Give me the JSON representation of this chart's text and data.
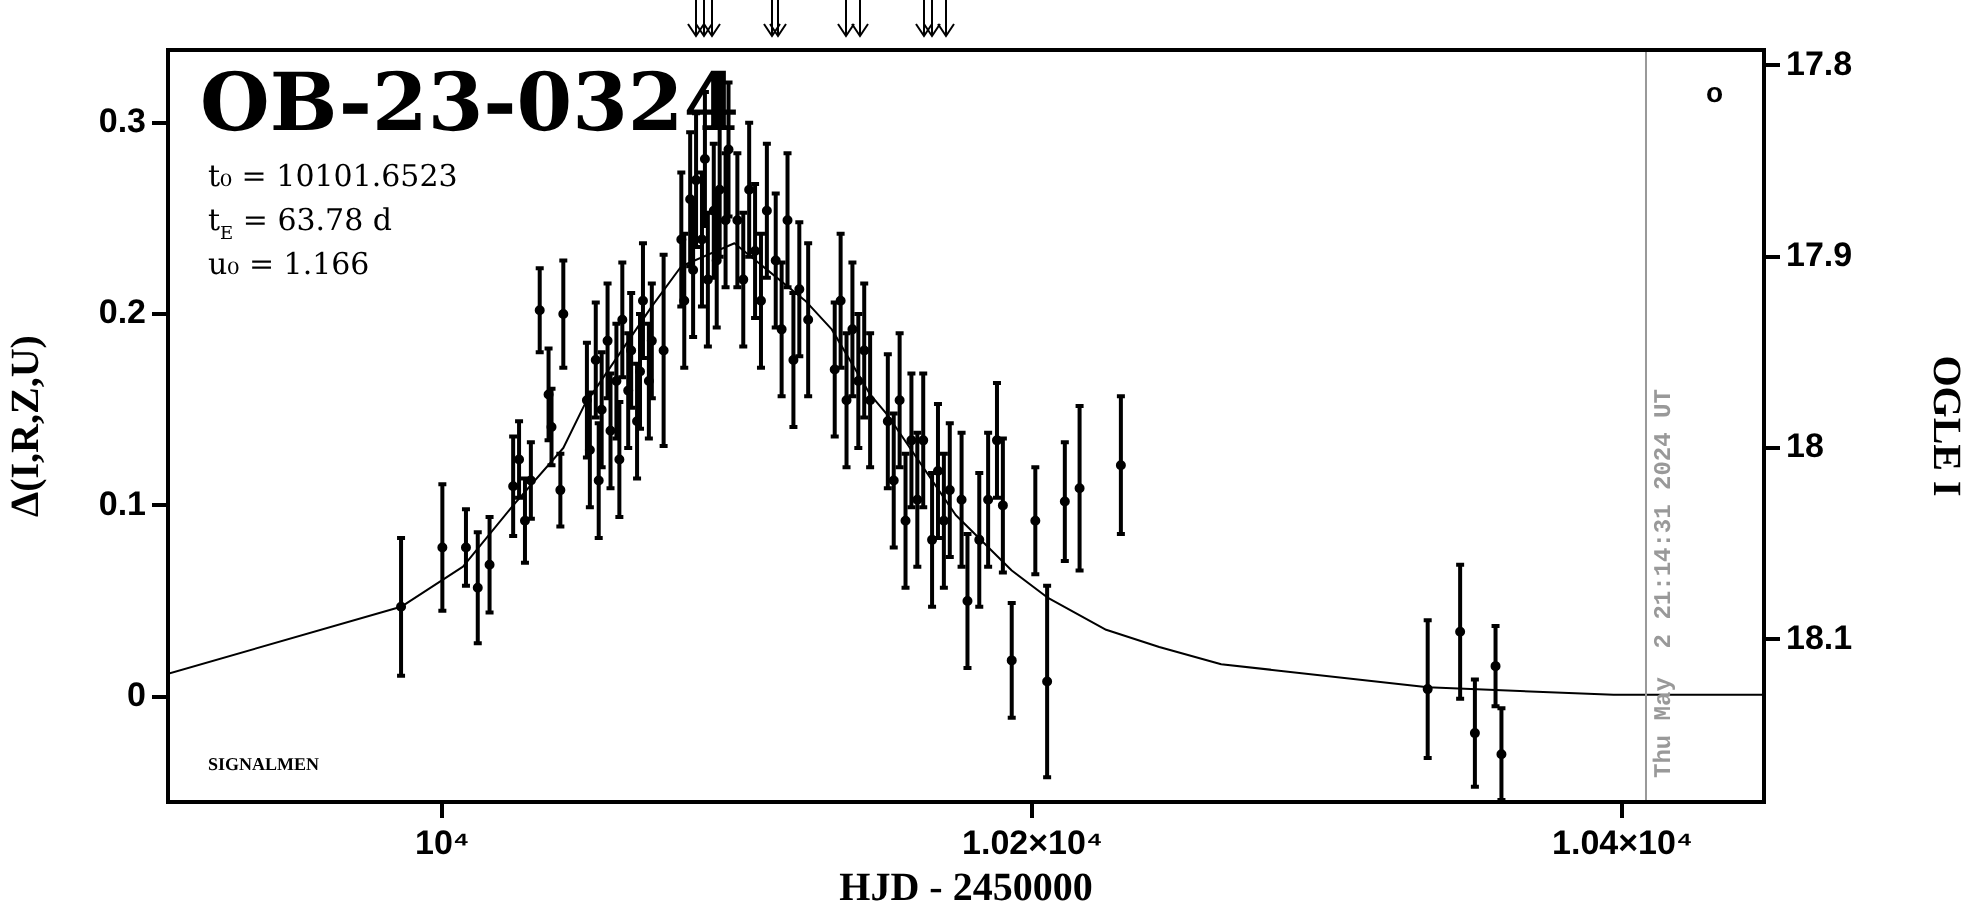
{
  "chart_data": {
    "type": "scatter",
    "xlabel": "HJD - 2450000",
    "ylabel": "Δ(I,R,Z,U)",
    "y2label": "OGLE I",
    "xlim": [
      9907,
      10448
    ],
    "xticks": [
      {
        "value": 10000,
        "label": "10⁴"
      },
      {
        "value": 10200,
        "label": "1.02×10⁴"
      },
      {
        "value": 10400,
        "label": "1.04×10⁴"
      }
    ],
    "ylim": [
      -0.055,
      0.338
    ],
    "yticks": [
      0,
      0.1,
      0.2,
      0.3
    ],
    "y2lim": [
      18.185,
      17.792
    ],
    "y2ticks": [
      17.8,
      17.9,
      18,
      18.1
    ],
    "annotations": [
      "OB-23-0324",
      "t₀ = 10101.6523",
      "t$_{E}$ = 63.78 d",
      "u₀ = 1.166",
      "SIGNALMEN",
      "o",
      "Thu May  2 21:14:31 2024 UT"
    ],
    "ref_lines": [
      {
        "axis": "x",
        "value": 10408,
        "color": "#999999"
      }
    ],
    "series": [
      {
        "type": "scatter",
        "color": "#000000",
        "marker": "circle",
        "x": [
          9986,
          10000,
          10008,
          10012,
          10016,
          10024,
          10026,
          10028,
          10030,
          10033,
          10036,
          10037,
          10040,
          10041,
          10049,
          10050,
          10052,
          10053,
          10054,
          10056,
          10057,
          10059,
          10060,
          10061,
          10063,
          10064,
          10066,
          10067,
          10068,
          10070,
          10071,
          10075,
          10081,
          10082,
          10084,
          10085,
          10086,
          10088,
          10089,
          10090,
          10092,
          10093,
          10094,
          10096,
          10097,
          10100,
          10102,
          10104,
          10106,
          10108,
          10110,
          10113,
          10115,
          10117,
          10119,
          10121,
          10124,
          10133,
          10135,
          10137,
          10139,
          10141,
          10143,
          10145,
          10151,
          10153,
          10155,
          10157,
          10159,
          10161,
          10163,
          10166,
          10168,
          10170,
          10172,
          10176,
          10178,
          10182,
          10185,
          10188,
          10190,
          10193,
          10201,
          10205,
          10211,
          10216,
          10230,
          10334,
          10345,
          10350,
          10357,
          10359
        ],
        "values": [
          0.047,
          0.078,
          0.078,
          0.057,
          0.069,
          0.11,
          0.124,
          0.092,
          0.113,
          0.202,
          0.158,
          0.141,
          0.108,
          0.2,
          0.155,
          0.129,
          0.176,
          0.113,
          0.15,
          0.186,
          0.139,
          0.165,
          0.124,
          0.197,
          0.16,
          0.181,
          0.144,
          0.17,
          0.207,
          0.165,
          0.186,
          0.181,
          0.239,
          0.207,
          0.26,
          0.223,
          0.27,
          0.239,
          0.281,
          0.218,
          0.254,
          0.228,
          0.265,
          0.249,
          0.286,
          0.249,
          0.218,
          0.265,
          0.233,
          0.207,
          0.254,
          0.228,
          0.192,
          0.249,
          0.176,
          0.213,
          0.197,
          0.171,
          0.207,
          0.155,
          0.192,
          0.165,
          0.181,
          0.155,
          0.144,
          0.113,
          0.155,
          0.092,
          0.134,
          0.103,
          0.134,
          0.082,
          0.118,
          0.092,
          0.108,
          0.103,
          0.05,
          0.082,
          0.103,
          0.134,
          0.1,
          0.019,
          0.092,
          0.008,
          0.102,
          0.109,
          0.121,
          0.004,
          0.034,
          -0.019,
          0.016,
          -0.03
        ],
        "errors": [
          0.036,
          0.033,
          0.02,
          0.029,
          0.025,
          0.026,
          0.02,
          0.022,
          0.02,
          0.022,
          0.024,
          0.02,
          0.019,
          0.028,
          0.03,
          0.03,
          0.03,
          0.03,
          0.03,
          0.03,
          0.03,
          0.03,
          0.03,
          0.03,
          0.03,
          0.03,
          0.03,
          0.03,
          0.03,
          0.03,
          0.03,
          0.05,
          0.035,
          0.035,
          0.035,
          0.035,
          0.035,
          0.035,
          0.035,
          0.035,
          0.035,
          0.035,
          0.035,
          0.035,
          0.035,
          0.035,
          0.035,
          0.035,
          0.035,
          0.035,
          0.035,
          0.035,
          0.035,
          0.035,
          0.035,
          0.035,
          0.04,
          0.035,
          0.035,
          0.035,
          0.035,
          0.035,
          0.035,
          0.035,
          0.035,
          0.035,
          0.035,
          0.035,
          0.035,
          0.035,
          0.035,
          0.035,
          0.035,
          0.035,
          0.035,
          0.035,
          0.035,
          0.035,
          0.035,
          0.03,
          0.035,
          0.03,
          0.028,
          0.05,
          0.031,
          0.043,
          0.036,
          0.036,
          0.035,
          0.028,
          0.021,
          0.024
        ]
      },
      {
        "type": "line",
        "color": "#000000",
        "marker": "none",
        "x": [
          9907,
          9986,
          10007,
          10024,
          10041,
          10048,
          10071,
          10081,
          10099,
          10123,
          10132,
          10145,
          10151,
          10174,
          10193,
          10205,
          10225,
          10243,
          10264,
          10334,
          10397,
          10448
        ],
        "values": [
          0.012,
          0.047,
          0.068,
          0.1,
          0.13,
          0.152,
          0.204,
          0.225,
          0.237,
          0.207,
          0.192,
          0.158,
          0.147,
          0.095,
          0.066,
          0.052,
          0.035,
          0.026,
          0.017,
          0.005,
          0.001,
          0.001
        ]
      }
    ]
  }
}
